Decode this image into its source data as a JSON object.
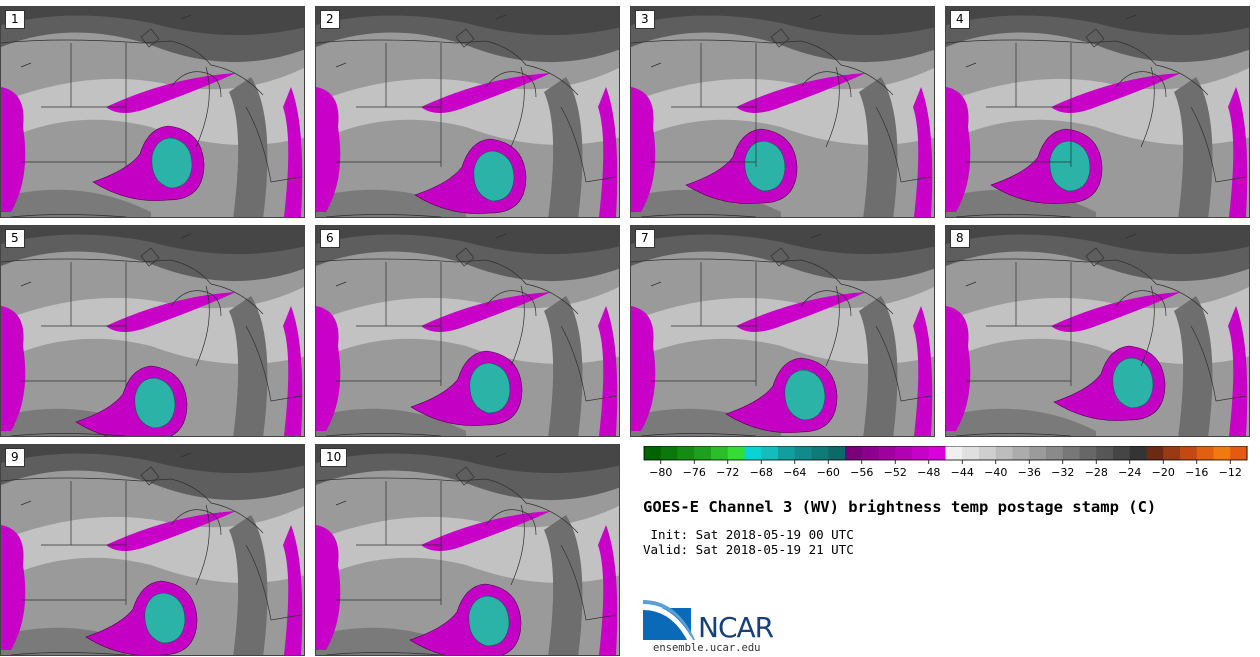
{
  "title": "GOES-E Channel 3 (WV) brightness temp postage stamp (C)",
  "init_label": " Init: Sat 2018-05-19 00 UTC",
  "valid_label": "Valid: Sat 2018-05-19 21 UTC",
  "logo": {
    "name": "NCAR",
    "url": "ensemble.ucar.edu"
  },
  "panels": [
    "1",
    "2",
    "3",
    "4",
    "5",
    "6",
    "7",
    "8",
    "9",
    "10"
  ],
  "colorbar": {
    "ticks": [
      "−80",
      "−76",
      "−72",
      "−68",
      "−64",
      "−60",
      "−56",
      "−52",
      "−48",
      "−44",
      "−40",
      "−36",
      "−32",
      "−28",
      "−24",
      "−20",
      "−16",
      "−12"
    ],
    "tick_values": [
      -80,
      -76,
      -72,
      -68,
      -64,
      -60,
      -56,
      -52,
      -48,
      -44,
      -40,
      -36,
      -32,
      -28,
      -24,
      -20,
      -16,
      -12
    ],
    "min": -82,
    "max": -10,
    "step": 2,
    "colors": [
      "#006400",
      "#0a780a",
      "#148c14",
      "#1ea01e",
      "#2bbe2b",
      "#33dd33",
      "#0bd3d3",
      "#14bcbc",
      "#129e9e",
      "#108a8a",
      "#0e7a7a",
      "#0d6868",
      "#7a007a",
      "#8d008d",
      "#a000a0",
      "#b300b3",
      "#c600c6",
      "#d900d9",
      "#f0f0f0",
      "#e0e0e0",
      "#cfcfcf",
      "#bdbdbd",
      "#acacac",
      "#9b9b9b",
      "#8a8a8a",
      "#787878",
      "#676767",
      "#565656",
      "#454545",
      "#343434",
      "#6b2a14",
      "#9a3a14",
      "#c24a12",
      "#e06010",
      "#f07a10",
      "#e35a10"
    ]
  }
}
